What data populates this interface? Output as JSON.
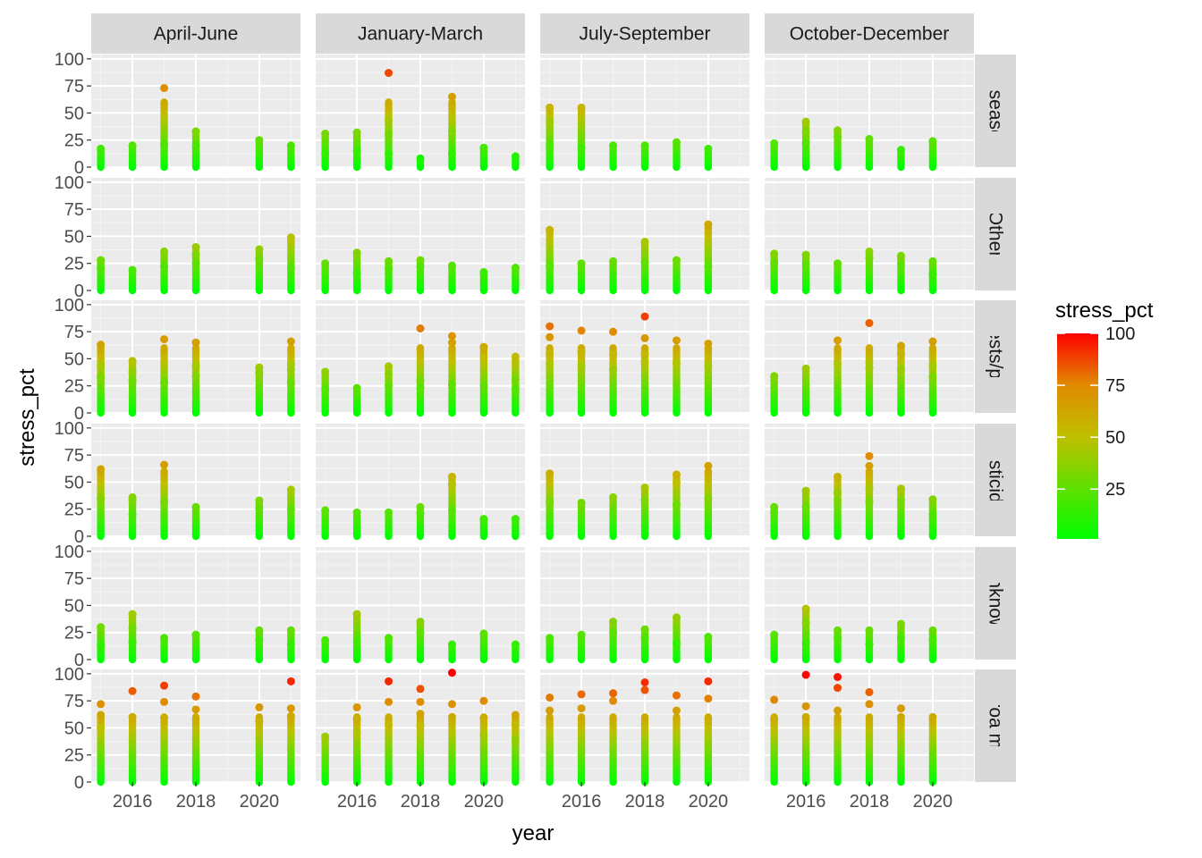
{
  "chart_data": {
    "type": "scatter",
    "facet_columns": [
      "April-June",
      "January-March",
      "July-September",
      "October-December"
    ],
    "facet_rows": [
      "Diseases",
      "Other",
      "Other pests/parasites",
      "Pesticides",
      "Unknown",
      "Varroa mites"
    ],
    "facet_row_labels_visible": [
      "Diseases",
      "Other",
      "r pests/para",
      "Pesticides",
      "Unknown",
      "Varroa mites"
    ],
    "xlabel": "year",
    "ylabel": "stress_pct",
    "x_ticks": [
      2016,
      2018,
      2020
    ],
    "y_ticks": [
      0,
      25,
      50,
      75,
      100
    ],
    "xlim": [
      2014.7,
      2021.3
    ],
    "ylim": [
      0,
      104
    ],
    "grid": true,
    "legend": {
      "title": "stress_pct",
      "position": "right",
      "ticks": [
        25,
        50,
        75,
        100
      ],
      "range": [
        1,
        100
      ],
      "colors": [
        "#00ff00",
        "#ff0000"
      ]
    },
    "panels": {
      "Diseases": {
        "April-June": [
          [
            2015,
            17
          ],
          [
            2016,
            20
          ],
          [
            2017,
            73
          ],
          [
            2017,
            21
          ],
          [
            2018,
            33
          ],
          [
            2018,
            20
          ],
          [
            2020,
            25
          ],
          [
            2021,
            20
          ]
        ],
        "January-March": [
          [
            2015,
            31
          ],
          [
            2015,
            13
          ],
          [
            2016,
            32
          ],
          [
            2016,
            15
          ],
          [
            2017,
            87
          ],
          [
            2017,
            43
          ],
          [
            2017,
            31
          ],
          [
            2017,
            12
          ],
          [
            2018,
            8
          ],
          [
            2019,
            65
          ],
          [
            2019,
            33
          ],
          [
            2019,
            13
          ],
          [
            2020,
            18
          ],
          [
            2021,
            10
          ]
        ],
        "July-September": [
          [
            2015,
            55
          ],
          [
            2015,
            42
          ],
          [
            2015,
            20
          ],
          [
            2016,
            55
          ],
          [
            2016,
            18
          ],
          [
            2017,
            20
          ],
          [
            2018,
            20
          ],
          [
            2019,
            23
          ],
          [
            2020,
            17
          ]
        ],
        "October-December": [
          [
            2015,
            22
          ],
          [
            2016,
            42
          ],
          [
            2016,
            33
          ],
          [
            2016,
            22
          ],
          [
            2017,
            34
          ],
          [
            2017,
            28
          ],
          [
            2018,
            26
          ],
          [
            2019,
            16
          ],
          [
            2020,
            24
          ]
        ]
      },
      "Other": {
        "April-June": [
          [
            2015,
            28
          ],
          [
            2015,
            20
          ],
          [
            2016,
            19
          ],
          [
            2017,
            36
          ],
          [
            2017,
            22
          ],
          [
            2018,
            40
          ],
          [
            2018,
            33
          ],
          [
            2018,
            25
          ],
          [
            2020,
            38
          ],
          [
            2020,
            29
          ],
          [
            2021,
            49
          ],
          [
            2021,
            21
          ]
        ],
        "January-March": [
          [
            2015,
            25
          ],
          [
            2016,
            35
          ],
          [
            2016,
            16
          ],
          [
            2017,
            27
          ],
          [
            2017,
            20
          ],
          [
            2018,
            28
          ],
          [
            2018,
            22
          ],
          [
            2019,
            23
          ],
          [
            2020,
            17
          ],
          [
            2021,
            21
          ]
        ],
        "July-September": [
          [
            2015,
            56
          ],
          [
            2015,
            23
          ],
          [
            2016,
            25
          ],
          [
            2017,
            27
          ],
          [
            2018,
            45
          ],
          [
            2018,
            26
          ],
          [
            2019,
            28
          ],
          [
            2020,
            61
          ],
          [
            2020,
            22
          ]
        ],
        "October-December": [
          [
            2015,
            34
          ],
          [
            2015,
            25
          ],
          [
            2016,
            33
          ],
          [
            2016,
            24
          ],
          [
            2017,
            25
          ],
          [
            2018,
            36
          ],
          [
            2018,
            30
          ],
          [
            2019,
            32
          ],
          [
            2019,
            24
          ],
          [
            2020,
            27
          ],
          [
            2020,
            15
          ]
        ]
      },
      "Other pests/parasites": {
        "April-June": [
          [
            2015,
            63
          ],
          [
            2015,
            44
          ],
          [
            2015,
            33
          ],
          [
            2016,
            48
          ],
          [
            2016,
            38
          ],
          [
            2016,
            30
          ],
          [
            2017,
            68
          ],
          [
            2017,
            28
          ],
          [
            2018,
            65
          ],
          [
            2018,
            43
          ],
          [
            2018,
            34
          ],
          [
            2020,
            42
          ],
          [
            2020,
            37
          ],
          [
            2021,
            66
          ],
          [
            2021,
            45
          ],
          [
            2021,
            40
          ],
          [
            2021,
            28
          ]
        ],
        "January-March": [
          [
            2015,
            38
          ],
          [
            2015,
            22
          ],
          [
            2016,
            23
          ],
          [
            2017,
            43
          ],
          [
            2017,
            36
          ],
          [
            2017,
            25
          ],
          [
            2018,
            78
          ],
          [
            2018,
            30
          ],
          [
            2018,
            23
          ],
          [
            2019,
            71
          ],
          [
            2019,
            65
          ],
          [
            2019,
            26
          ],
          [
            2020,
            61
          ],
          [
            2020,
            51
          ],
          [
            2020,
            25
          ],
          [
            2021,
            52
          ],
          [
            2021,
            31
          ],
          [
            2021,
            22
          ]
        ],
        "July-September": [
          [
            2015,
            80
          ],
          [
            2015,
            70
          ],
          [
            2015,
            55
          ],
          [
            2015,
            45
          ],
          [
            2016,
            76
          ],
          [
            2016,
            56
          ],
          [
            2016,
            43
          ],
          [
            2017,
            75
          ],
          [
            2017,
            54
          ],
          [
            2017,
            40
          ],
          [
            2018,
            89
          ],
          [
            2018,
            69
          ],
          [
            2018,
            54
          ],
          [
            2018,
            47
          ],
          [
            2019,
            67
          ],
          [
            2019,
            46
          ],
          [
            2020,
            64
          ],
          [
            2020,
            43
          ]
        ],
        "October-December": [
          [
            2015,
            34
          ],
          [
            2016,
            41
          ],
          [
            2017,
            67
          ],
          [
            2017,
            45
          ],
          [
            2018,
            83
          ],
          [
            2018,
            47
          ],
          [
            2018,
            42
          ],
          [
            2019,
            62
          ],
          [
            2019,
            55
          ],
          [
            2019,
            40
          ],
          [
            2020,
            66
          ],
          [
            2020,
            43
          ],
          [
            2020,
            33
          ]
        ]
      },
      "Pesticides": {
        "April-June": [
          [
            2015,
            62
          ],
          [
            2015,
            35
          ],
          [
            2016,
            36
          ],
          [
            2016,
            33
          ],
          [
            2016,
            20
          ],
          [
            2017,
            66
          ],
          [
            2017,
            32
          ],
          [
            2018,
            27
          ],
          [
            2020,
            33
          ],
          [
            2020,
            26
          ],
          [
            2021,
            43
          ],
          [
            2021,
            25
          ]
        ],
        "January-March": [
          [
            2015,
            24
          ],
          [
            2016,
            22
          ],
          [
            2017,
            22
          ],
          [
            2018,
            27
          ],
          [
            2018,
            21
          ],
          [
            2019,
            55
          ],
          [
            2019,
            48
          ],
          [
            2019,
            24
          ],
          [
            2020,
            16
          ],
          [
            2021,
            16
          ]
        ],
        "July-September": [
          [
            2015,
            58
          ],
          [
            2015,
            32
          ],
          [
            2016,
            31
          ],
          [
            2017,
            36
          ],
          [
            2018,
            45
          ],
          [
            2018,
            33
          ],
          [
            2019,
            57
          ],
          [
            2019,
            50
          ],
          [
            2019,
            29
          ],
          [
            2020,
            65
          ],
          [
            2020,
            35
          ]
        ],
        "October-December": [
          [
            2015,
            27
          ],
          [
            2015,
            22
          ],
          [
            2016,
            42
          ],
          [
            2016,
            27
          ],
          [
            2017,
            55
          ],
          [
            2017,
            40
          ],
          [
            2017,
            33
          ],
          [
            2018,
            74
          ],
          [
            2018,
            65
          ],
          [
            2018,
            44
          ],
          [
            2018,
            32
          ],
          [
            2019,
            44
          ],
          [
            2019,
            33
          ],
          [
            2020,
            34
          ],
          [
            2020,
            20
          ]
        ]
      },
      "Unknown": {
        "April-June": [
          [
            2015,
            30
          ],
          [
            2015,
            13
          ],
          [
            2016,
            42
          ],
          [
            2016,
            29
          ],
          [
            2016,
            16
          ],
          [
            2017,
            20
          ],
          [
            2018,
            23
          ],
          [
            2020,
            27
          ],
          [
            2020,
            18
          ],
          [
            2021,
            27
          ],
          [
            2021,
            14
          ]
        ],
        "January-March": [
          [
            2015,
            18
          ],
          [
            2016,
            42
          ],
          [
            2016,
            17
          ],
          [
            2017,
            20
          ],
          [
            2018,
            35
          ],
          [
            2018,
            25
          ],
          [
            2019,
            14
          ],
          [
            2020,
            24
          ],
          [
            2021,
            14
          ]
        ],
        "July-September": [
          [
            2015,
            20
          ],
          [
            2016,
            23
          ],
          [
            2017,
            35
          ],
          [
            2017,
            25
          ],
          [
            2018,
            28
          ],
          [
            2018,
            20
          ],
          [
            2019,
            39
          ],
          [
            2019,
            15
          ],
          [
            2020,
            21
          ]
        ],
        "October-December": [
          [
            2015,
            23
          ],
          [
            2016,
            47
          ],
          [
            2016,
            34
          ],
          [
            2016,
            15
          ],
          [
            2017,
            27
          ],
          [
            2017,
            20
          ],
          [
            2018,
            27
          ],
          [
            2018,
            14
          ],
          [
            2019,
            33
          ],
          [
            2019,
            20
          ],
          [
            2020,
            27
          ],
          [
            2020,
            19
          ]
        ]
      },
      "Varroa mites": {
        "April-June": [
          [
            2015,
            72
          ],
          [
            2015,
            62
          ],
          [
            2015,
            50
          ],
          [
            2016,
            84
          ],
          [
            2016,
            60
          ],
          [
            2017,
            89
          ],
          [
            2017,
            74
          ],
          [
            2017,
            59
          ],
          [
            2018,
            79
          ],
          [
            2018,
            67
          ],
          [
            2020,
            69
          ],
          [
            2020,
            56
          ],
          [
            2021,
            93
          ],
          [
            2021,
            68
          ],
          [
            2021,
            61
          ]
        ],
        "January-March": [
          [
            2015,
            42
          ],
          [
            2016,
            69
          ],
          [
            2016,
            58
          ],
          [
            2016,
            46
          ],
          [
            2017,
            93
          ],
          [
            2017,
            74
          ],
          [
            2017,
            53
          ],
          [
            2018,
            86
          ],
          [
            2018,
            74
          ],
          [
            2018,
            63
          ],
          [
            2018,
            52
          ],
          [
            2019,
            101
          ],
          [
            2019,
            72
          ],
          [
            2019,
            60
          ],
          [
            2020,
            75
          ],
          [
            2020,
            59
          ],
          [
            2020,
            43
          ],
          [
            2021,
            62
          ],
          [
            2021,
            53
          ],
          [
            2021,
            38
          ]
        ],
        "July-September": [
          [
            2015,
            78
          ],
          [
            2015,
            66
          ],
          [
            2016,
            81
          ],
          [
            2016,
            68
          ],
          [
            2017,
            82
          ],
          [
            2017,
            75
          ],
          [
            2018,
            92
          ],
          [
            2018,
            85
          ],
          [
            2019,
            80
          ],
          [
            2019,
            66
          ],
          [
            2020,
            93
          ],
          [
            2020,
            77
          ]
        ],
        "October-December": [
          [
            2015,
            76
          ],
          [
            2015,
            58
          ],
          [
            2016,
            99
          ],
          [
            2016,
            70
          ],
          [
            2016,
            60
          ],
          [
            2017,
            97
          ],
          [
            2017,
            87
          ],
          [
            2017,
            66
          ],
          [
            2018,
            83
          ],
          [
            2018,
            72
          ],
          [
            2019,
            68
          ],
          [
            2019,
            60
          ],
          [
            2020,
            60
          ]
        ]
      }
    }
  }
}
